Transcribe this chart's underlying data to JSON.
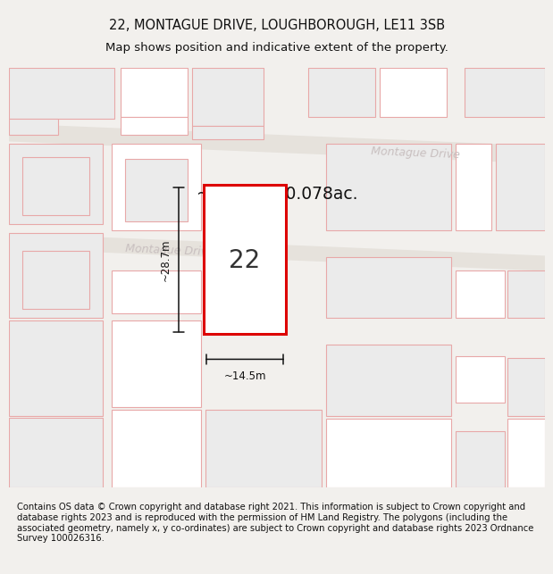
{
  "title_line1": "22, MONTAGUE DRIVE, LOUGHBOROUGH, LE11 3SB",
  "title_line2": "Map shows position and indicative extent of the property.",
  "footer_text": "Contains OS data © Crown copyright and database right 2021. This information is subject to Crown copyright and database rights 2023 and is reproduced with the permission of HM Land Registry. The polygons (including the associated geometry, namely x, y co-ordinates) are subject to Crown copyright and database rights 2023 Ordnance Survey 100026316.",
  "bg_color": "#f2f0ed",
  "map_bg": "#f2f0ed",
  "road_label_upper": "Montague Drive",
  "road_label_lower": "Montague Drive",
  "area_label": "~314m²/~0.078ac.",
  "number_label": "22",
  "width_label": "~14.5m",
  "height_label": "~28.7m",
  "title_fontsize": 10.5,
  "subtitle_fontsize": 9.5,
  "footer_fontsize": 7.2,
  "ec_pink": "#e8a8a8",
  "fc_white": "#ffffff",
  "fc_light": "#ebebeb",
  "fc_road": "#e8e4e0",
  "red_parcel": "#dd0000"
}
